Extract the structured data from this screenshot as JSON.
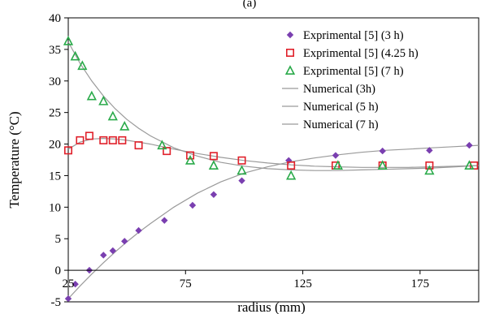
{
  "chart_data": {
    "type": "scatter",
    "panel_label": "(a)",
    "xlabel": "radius (mm)",
    "ylabel": "Temperature (°C)",
    "xlim": [
      25,
      200
    ],
    "ylim": [
      -5,
      40
    ],
    "xticks": [
      25,
      75,
      125,
      175
    ],
    "yticks": [
      -5,
      0,
      5,
      10,
      15,
      20,
      25,
      30,
      35,
      40
    ],
    "grid": false,
    "legend_position": "top-right",
    "series": [
      {
        "name": "Exprimental [5] (3 h)",
        "kind": "marker",
        "marker": "diamond",
        "color": "#7a3fb0",
        "x": [
          25,
          28,
          34,
          40,
          44,
          49,
          55,
          66,
          78,
          87,
          99,
          119,
          139,
          159,
          179,
          196
        ],
        "y": [
          -4.5,
          -2.2,
          0.0,
          2.4,
          3.1,
          4.6,
          6.3,
          7.9,
          10.3,
          12.0,
          14.2,
          17.4,
          18.2,
          18.9,
          19.0,
          19.8
        ]
      },
      {
        "name": "Exprimental [5] (4.25 h)",
        "kind": "marker",
        "marker": "square",
        "color": "#e0202a",
        "x": [
          25,
          30,
          34,
          40,
          44,
          48,
          55,
          67,
          77,
          87,
          99,
          120,
          139,
          159,
          179,
          198
        ],
        "y": [
          19.0,
          20.6,
          21.3,
          20.6,
          20.6,
          20.6,
          19.8,
          18.9,
          18.2,
          18.1,
          17.4,
          16.6,
          16.6,
          16.6,
          16.6,
          16.6
        ]
      },
      {
        "name": "Exprimental [5] (7 h)",
        "kind": "marker",
        "marker": "triangle",
        "color": "#2aaa4a",
        "x": [
          25,
          28,
          31,
          35,
          40,
          44,
          49,
          65,
          77,
          87,
          99,
          120,
          140,
          159,
          179,
          196
        ],
        "y": [
          36.3,
          33.9,
          32.4,
          27.6,
          26.8,
          24.4,
          22.8,
          19.8,
          17.4,
          16.6,
          15.8,
          15.0,
          16.6,
          16.6,
          15.8,
          16.6
        ]
      },
      {
        "name": "Numerical (3h)",
        "kind": "line",
        "color": "#9a9a9a",
        "x": [
          25,
          30,
          35,
          40,
          45,
          50,
          55,
          60,
          70,
          80,
          90,
          100,
          110,
          120,
          130,
          140,
          150,
          160,
          170,
          180,
          190,
          200
        ],
        "y": [
          -4.5,
          -2.5,
          -0.6,
          1.2,
          2.9,
          4.5,
          6.0,
          7.4,
          10.0,
          12.2,
          14.0,
          15.4,
          16.4,
          17.2,
          17.8,
          18.3,
          18.7,
          19.0,
          19.2,
          19.4,
          19.6,
          19.8
        ]
      },
      {
        "name": "Numerical (5 h)",
        "kind": "line",
        "color": "#9a9a9a",
        "x": [
          25,
          30,
          35,
          40,
          45,
          50,
          55,
          60,
          70,
          80,
          90,
          100,
          110,
          120,
          130,
          140,
          150,
          160,
          170,
          180,
          190,
          200
        ],
        "y": [
          19.2,
          20.3,
          20.8,
          20.9,
          20.8,
          20.6,
          20.3,
          20.0,
          19.2,
          18.5,
          17.9,
          17.4,
          17.0,
          16.7,
          16.5,
          16.4,
          16.3,
          16.3,
          16.3,
          16.4,
          16.5,
          16.6
        ]
      },
      {
        "name": "Numerical (7 h)",
        "kind": "line",
        "color": "#9a9a9a",
        "x": [
          25,
          30,
          35,
          40,
          45,
          50,
          55,
          60,
          70,
          80,
          90,
          100,
          110,
          120,
          130,
          140,
          150,
          160,
          170,
          180,
          190,
          200
        ],
        "y": [
          36.2,
          32.8,
          30.0,
          27.6,
          25.6,
          23.9,
          22.5,
          21.3,
          19.4,
          18.1,
          17.1,
          16.5,
          16.1,
          15.9,
          15.8,
          15.8,
          15.9,
          16.0,
          16.1,
          16.2,
          16.4,
          16.6
        ]
      }
    ]
  }
}
